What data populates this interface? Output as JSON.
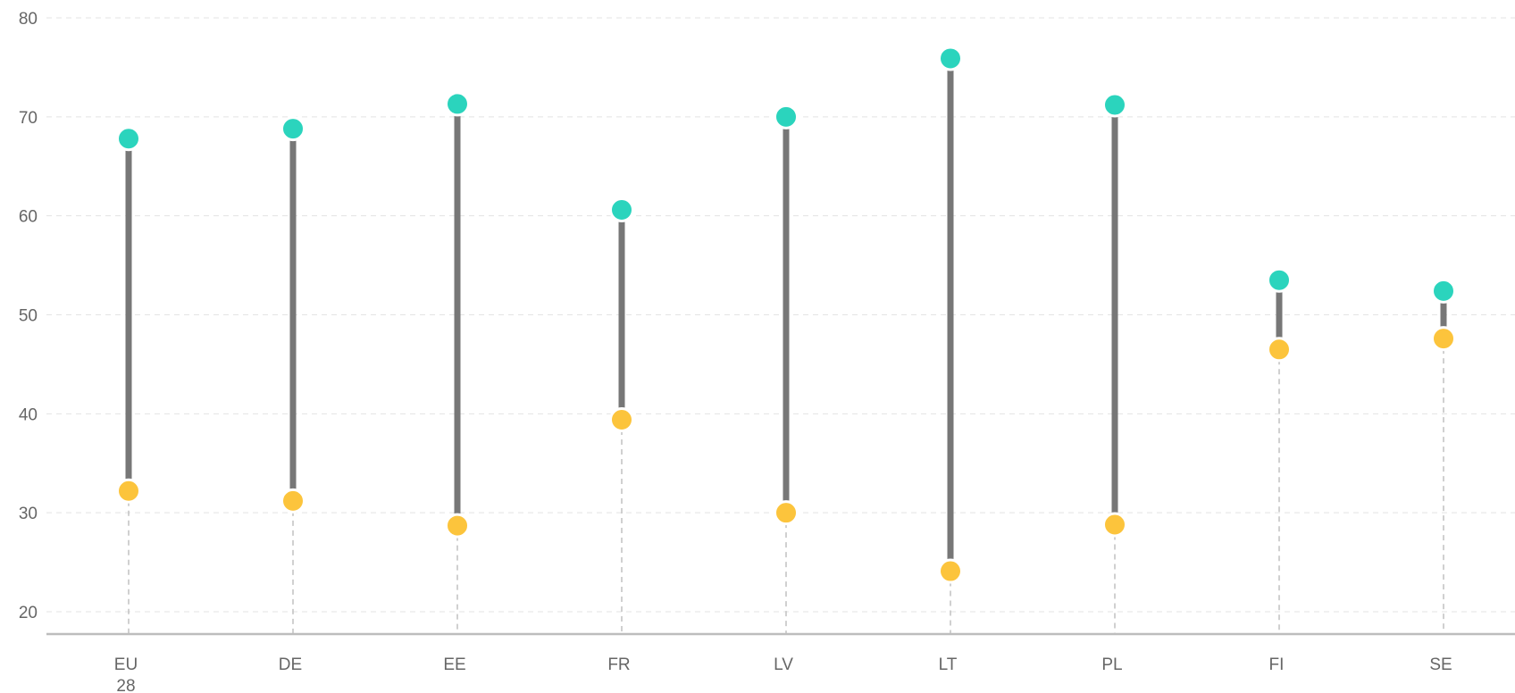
{
  "chart_data": {
    "type": "dumbbell",
    "categories": [
      "EU\n28",
      "DE",
      "EE",
      "FR",
      "LV",
      "LT",
      "PL",
      "FI",
      "SE"
    ],
    "series": [
      {
        "values": [
          67.8,
          68.8,
          71.3,
          60.6,
          70.0,
          75.9,
          71.2,
          53.5,
          52.4
        ]
      },
      {
        "values": [
          32.2,
          31.2,
          28.7,
          39.4,
          30.0,
          24.1,
          28.8,
          46.5,
          47.6
        ]
      }
    ],
    "ylim": [
      18,
      80
    ],
    "yticks": [
      20,
      30,
      40,
      50,
      60,
      70,
      80
    ],
    "grid": true,
    "colors": {
      "high": "#2bd4bd",
      "low": "#fcc43c",
      "connector": "#777777"
    }
  }
}
